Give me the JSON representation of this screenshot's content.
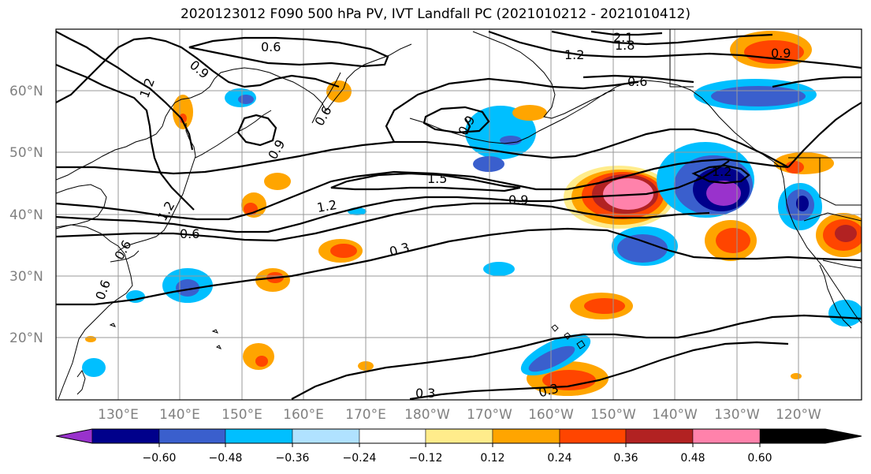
{
  "title": "2020123012 F090 500 hPa PV, IVT Landfall PC (2021010212 - 2021010412)",
  "map": {
    "lat_labels": [
      "60°N",
      "50°N",
      "40°N",
      "30°N",
      "20°N"
    ],
    "lon_labels": [
      "130°E",
      "140°E",
      "150°E",
      "160°E",
      "170°E",
      "180°W",
      "170°W",
      "160°W",
      "150°W",
      "140°W",
      "130°W",
      "120°W"
    ],
    "contour_labels": [
      "0.6",
      "0.9",
      "1.2",
      "2.1",
      "1.8",
      "1.2",
      "0.6",
      "0.9",
      "0.6",
      "0.9",
      "1.5",
      "0.9",
      "1.2",
      "1.2",
      "0.6",
      "0.3",
      "0.6",
      "0.6",
      "0.3",
      "0.3",
      "1.2",
      "0.9"
    ],
    "colors": {
      "neg_060": "#9932CC",
      "neg_048": "#00008B",
      "neg_036": "#3A5FCD",
      "neg_024": "#00BFFF",
      "neg_012": "#B0E2FF",
      "neutral": "#FFFFFF",
      "pos_012": "#FFEC8B",
      "pos_024": "#FFA500",
      "pos_036": "#FF4500",
      "pos_048": "#B22222",
      "pos_060": "#FF82AB"
    }
  },
  "colorbar": {
    "ticks": [
      "−0.60",
      "−0.48",
      "−0.36",
      "−0.24",
      "−0.12",
      "0.12",
      "0.24",
      "0.36",
      "0.48",
      "0.60"
    ],
    "colors": [
      "#9932CC",
      "#00008B",
      "#3A5FCD",
      "#00BFFF",
      "#B0E2FF",
      "#FFFFFF",
      "#FFEC8B",
      "#FFA500",
      "#FF4500",
      "#B22222",
      "#FF82AB"
    ]
  }
}
